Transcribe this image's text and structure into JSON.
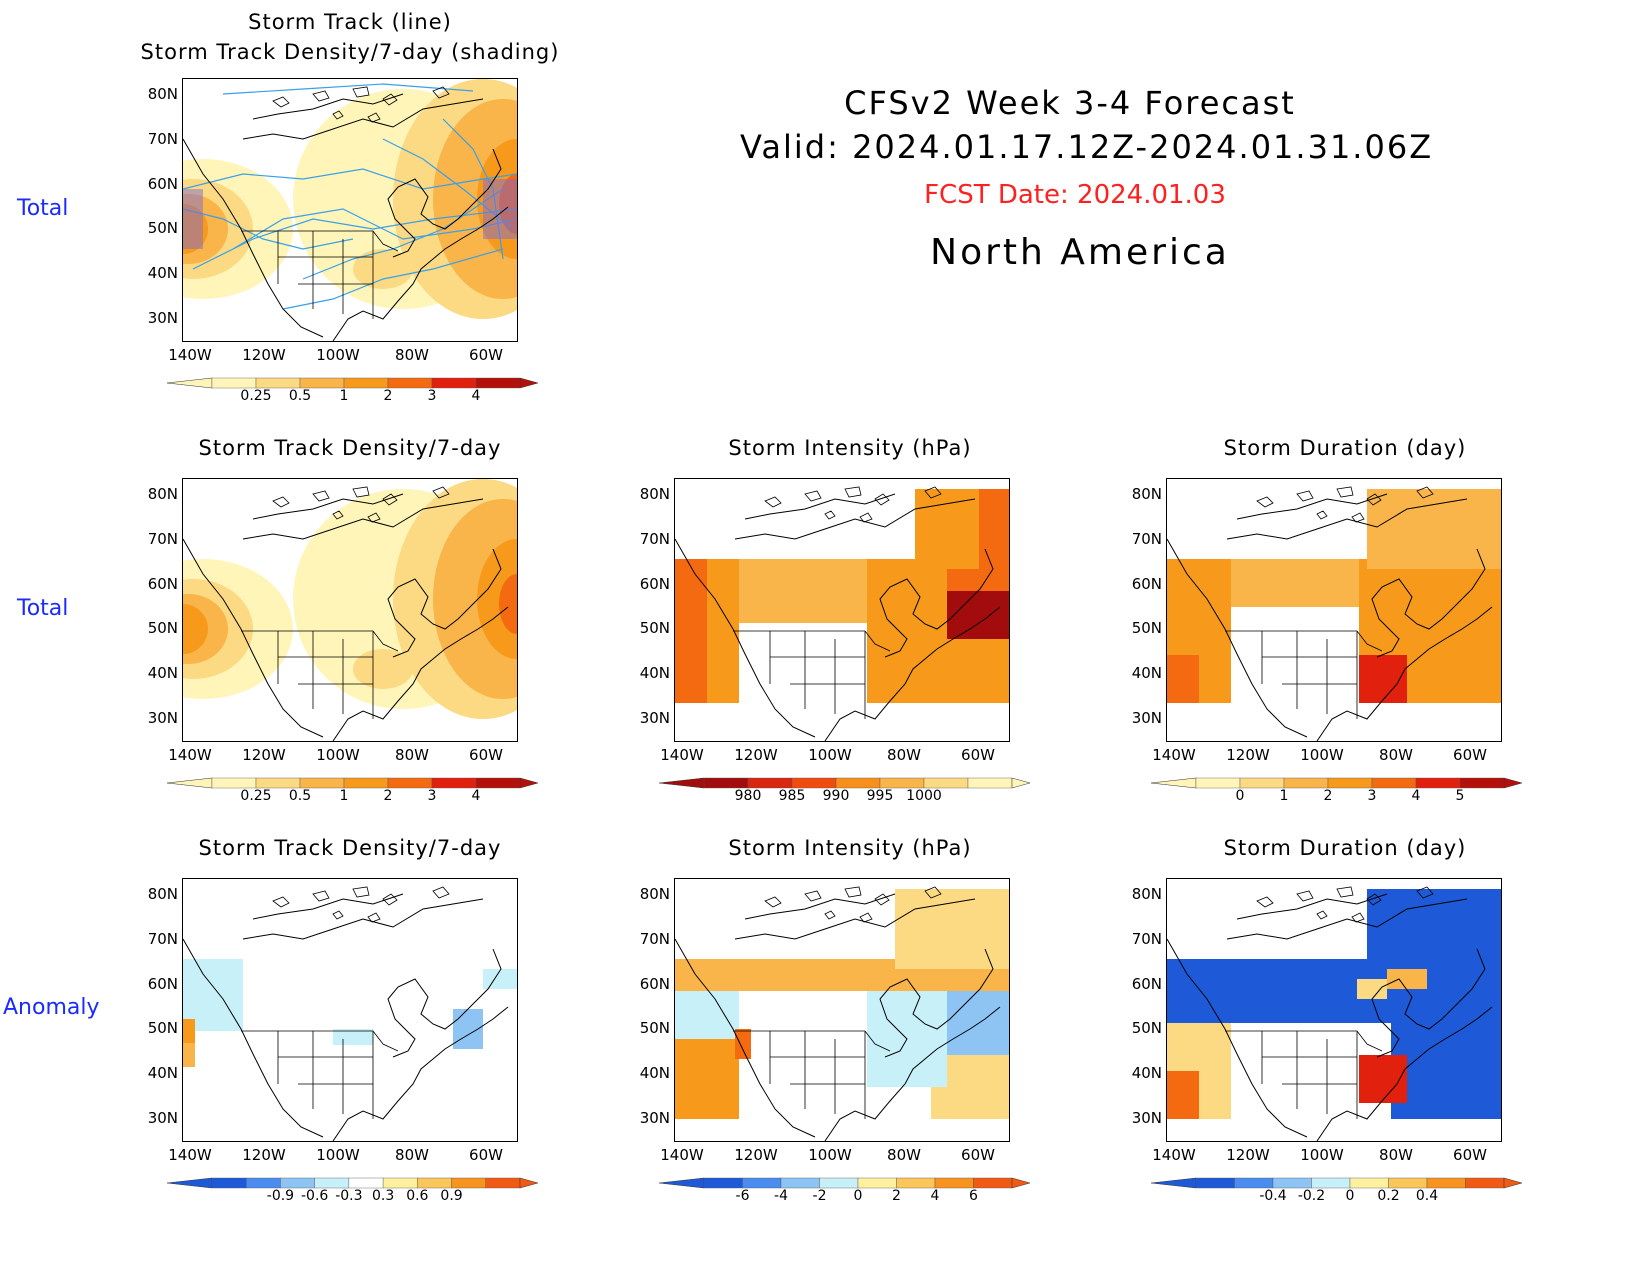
{
  "header": {
    "title_line1": "CFSv2 Week 3-4 Forecast",
    "title_line2": "Valid: 2024.01.17.12Z-2024.01.31.06Z",
    "fcst_date": "FCST Date: 2024.01.03",
    "region": "North America"
  },
  "row_labels": {
    "row1": "Total",
    "row2": "Total",
    "row3": "Anomaly"
  },
  "axes": {
    "lat_labels": [
      "80N",
      "70N",
      "60N",
      "50N",
      "40N",
      "30N"
    ],
    "lon_labels": [
      "140W",
      "120W",
      "100W",
      "80W",
      "60W"
    ]
  },
  "panels": {
    "p_track": {
      "title_line1": "Storm Track (line)",
      "title_line2": "Storm Track Density/7-day (shading)"
    },
    "p_density_total": {
      "title": "Storm Track Density/7-day"
    },
    "p_intensity_total": {
      "title": "Storm Intensity (hPa)"
    },
    "p_duration_total": {
      "title": "Storm Duration (day)"
    },
    "p_density_anom": {
      "title": "Storm Track Density/7-day"
    },
    "p_intensity_anom": {
      "title": "Storm Intensity (hPa)"
    },
    "p_duration_anom": {
      "title": "Storm Duration (day)"
    }
  },
  "colorbars": {
    "density": {
      "labels": [
        "0.25",
        "0.5",
        "1",
        "2",
        "3",
        "4"
      ],
      "colors": [
        "#fff5b8",
        "#fcd983",
        "#f9b44a",
        "#f79a1c",
        "#f46a10",
        "#e1200e",
        "#b4100a"
      ]
    },
    "intensity": {
      "labels": [
        "980",
        "985",
        "990",
        "995",
        "1000"
      ],
      "colors": [
        "#a20c0c",
        "#d8260f",
        "#f04c10",
        "#f7901a",
        "#f9b44a",
        "#fcd983",
        "#fff5b8"
      ]
    },
    "duration": {
      "labels": [
        "0",
        "1",
        "2",
        "3",
        "4",
        "5"
      ],
      "colors": [
        "#fff5b8",
        "#fcd983",
        "#f9b44a",
        "#f79a1c",
        "#f46a10",
        "#e1200e",
        "#b4100a"
      ]
    },
    "density_anom": {
      "labels": [
        "-0.9",
        "-0.6",
        "-0.3",
        "0.3",
        "0.6",
        "0.9"
      ],
      "colors": [
        "#1e5ad8",
        "#4a8cf0",
        "#8ec4f4",
        "#c8f0f8",
        "#ffffff",
        "#fff0a0",
        "#fbc75a",
        "#f7931e",
        "#f05a14"
      ]
    },
    "intensity_anom": {
      "labels": [
        "-6",
        "-4",
        "-2",
        "0",
        "2",
        "4",
        "6"
      ],
      "colors": [
        "#1e5ad8",
        "#4a8cf0",
        "#8ec4f4",
        "#c8f0f8",
        "#fff0a0",
        "#fbc75a",
        "#f7931e",
        "#f05a14"
      ]
    },
    "duration_anom": {
      "labels": [
        "-0.4",
        "-0.2",
        "0",
        "0.2",
        "0.4"
      ],
      "colors": [
        "#1e5ad8",
        "#4a8cf0",
        "#8ec4f4",
        "#c8f0f8",
        "#fff0a0",
        "#fbc75a",
        "#f7931e",
        "#f05a14"
      ]
    }
  }
}
